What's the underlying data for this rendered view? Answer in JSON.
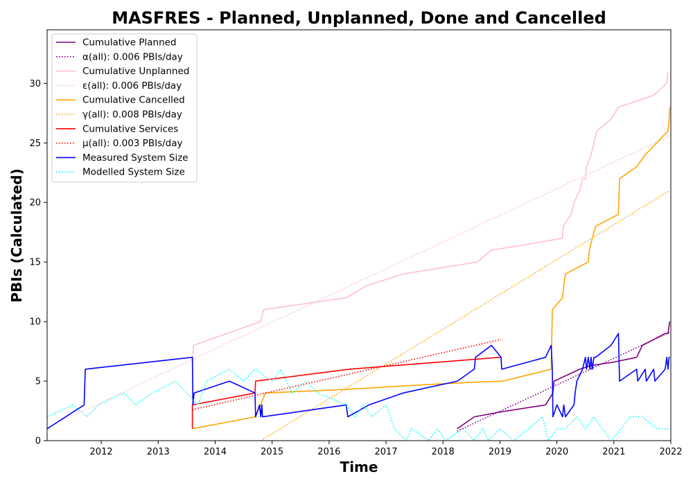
{
  "chart_data": {
    "type": "line",
    "title": "MASFRES - Planned, Unplanned, Done  and Cancelled",
    "xlabel": "Time",
    "ylabel": "PBIs (Calculated)",
    "xlim": [
      2011.05,
      2022.0
    ],
    "ylim": [
      0,
      34.5
    ],
    "x_ticks": [
      2012,
      2013,
      2014,
      2015,
      2016,
      2017,
      2018,
      2019,
      2020,
      2021,
      2022
    ],
    "x_tick_labels": [
      "2012",
      "2013",
      "2014",
      "2015",
      "2016",
      "2017",
      "2018",
      "2019",
      "2020",
      "2021",
      "2022"
    ],
    "y_ticks": [
      0,
      5,
      10,
      15,
      20,
      25,
      30
    ],
    "y_tick_labels": [
      "0",
      "5",
      "10",
      "15",
      "20",
      "25",
      "30"
    ],
    "grid": false,
    "legend_position": "top-left",
    "series": [
      {
        "name": "Cumulative Planned",
        "color": "#800080",
        "style": "solid",
        "x": [
          2018.25,
          2018.55,
          2019.0,
          2019.8,
          2019.93,
          2019.95,
          2020.4,
          2020.6,
          2021.0,
          2021.4,
          2021.5,
          2021.9,
          2021.95,
          2021.98
        ],
        "y": [
          1,
          2,
          2.4,
          3,
          4,
          5,
          6,
          6.3,
          6.6,
          7,
          8,
          9,
          9,
          10
        ]
      },
      {
        "name": "α(all): 0.006 PBIs/day",
        "color": "#800080",
        "style": "dotted",
        "x": [
          2018.25,
          2021.98
        ],
        "y": [
          0.8,
          9.1
        ]
      },
      {
        "name": "Cumulative Unplanned",
        "color": "#ffc0cb",
        "style": "solid",
        "x": [
          2013.6,
          2013.62,
          2014.8,
          2014.85,
          2016.3,
          2016.65,
          2017.3,
          2018.6,
          2018.85,
          2019.5,
          2020.1,
          2020.11,
          2020.25,
          2020.3,
          2020.4,
          2020.45,
          2020.5,
          2020.52,
          2020.6,
          2020.7,
          2020.95,
          2021.08,
          2021.7,
          2021.93,
          2021.95
        ],
        "y": [
          6.5,
          8,
          10,
          11,
          12,
          13,
          14,
          15,
          16,
          16.5,
          17,
          18,
          19,
          20,
          21,
          22,
          22,
          23,
          24,
          26,
          27,
          28,
          29,
          30,
          31
        ]
      },
      {
        "name": "ε(all): 0.006 PBIs/day",
        "color": "#ffc0cb",
        "style": "dotted",
        "x": [
          2011.5,
          2021.98
        ],
        "y": [
          2.1,
          25.6
        ]
      },
      {
        "name": "Cumulative Cancelled",
        "color": "#ffa500",
        "style": "solid",
        "x": [
          2013.6,
          2014.7,
          2014.8,
          2014.88,
          2016.3,
          2017.3,
          2018.5,
          2019.05,
          2019.9,
          2019.92,
          2020.1,
          2020.12,
          2020.15,
          2020.55,
          2020.57,
          2020.62,
          2020.68,
          2021.08,
          2021.1,
          2021.4,
          2021.55,
          2021.75,
          2021.95,
          2021.97,
          2021.98
        ],
        "y": [
          1,
          2,
          3,
          4,
          4.3,
          4.6,
          4.9,
          5,
          6,
          11,
          12,
          13,
          14,
          15,
          16,
          17,
          18,
          19,
          22,
          23,
          24,
          25,
          26,
          27,
          28
        ]
      },
      {
        "name": "γ(all): 0.008 PBIs/day",
        "color": "#ffa500",
        "style": "dotted",
        "x": [
          2014.8,
          2021.98
        ],
        "y": [
          0,
          21
        ]
      },
      {
        "name": "Cumulative Services",
        "color": "#ff0000",
        "style": "solid",
        "x": [
          2013.6,
          2013.6,
          2014.7,
          2014.71,
          2016.35,
          2019.0,
          2019.02
        ],
        "y": [
          1,
          3,
          4,
          5,
          6,
          7,
          7
        ]
      },
      {
        "name": "μ(all): 0.003 PBIs/day",
        "color": "#ff0000",
        "style": "dotted",
        "x": [
          2013.6,
          2019.02
        ],
        "y": [
          2.6,
          8.5
        ]
      },
      {
        "name": "Measured System Size",
        "color": "#0000ff",
        "style": "solid",
        "x": [
          2011.05,
          2011.7,
          2011.72,
          2013.6,
          2013.61,
          2013.63,
          2014.25,
          2014.7,
          2014.71,
          2014.78,
          2014.8,
          2014.82,
          2014.83,
          2016.3,
          2016.33,
          2016.7,
          2017.3,
          2018.25,
          2018.55,
          2018.57,
          2018.85,
          2019.02,
          2019.03,
          2019.8,
          2019.9,
          2019.92,
          2019.93,
          2020.0,
          2020.1,
          2020.12,
          2020.15,
          2020.3,
          2020.32,
          2020.35,
          2020.45,
          2020.5,
          2020.52,
          2020.55,
          2020.58,
          2020.6,
          2020.62,
          2020.65,
          2020.68,
          2020.95,
          2021.08,
          2021.1,
          2021.4,
          2021.42,
          2021.55,
          2021.57,
          2021.7,
          2021.72,
          2021.9,
          2021.93,
          2021.95,
          2021.97,
          2021.98
        ],
        "y": [
          1,
          3,
          6,
          7,
          3,
          4,
          5,
          4,
          2,
          3,
          2,
          3,
          2,
          3,
          2,
          3,
          4,
          5,
          6,
          7,
          8,
          7,
          6,
          7,
          8,
          6,
          2,
          3,
          2,
          3,
          2,
          3,
          4,
          5,
          6,
          7,
          6,
          7,
          6,
          7,
          6,
          7,
          7,
          8,
          9,
          5,
          6,
          5,
          6,
          5,
          6,
          5,
          6,
          7,
          6,
          7,
          7
        ]
      },
      {
        "name": "Modelled System Size",
        "color": "#00ffff",
        "style": "dotted",
        "x": [
          2011.05,
          2011.5,
          2011.75,
          2011.95,
          2012.4,
          2012.6,
          2012.9,
          2013.3,
          2013.5,
          2013.7,
          2013.85,
          2014.25,
          2014.5,
          2014.7,
          2015.0,
          2015.15,
          2015.35,
          2015.6,
          2015.8,
          2016.3,
          2016.45,
          2016.6,
          2016.75,
          2017.0,
          2017.15,
          2017.35,
          2017.45,
          2017.75,
          2017.9,
          2018.05,
          2018.35,
          2018.55,
          2018.7,
          2018.8,
          2019.0,
          2019.25,
          2019.5,
          2019.75,
          2019.85,
          2020.0,
          2020.15,
          2020.35,
          2020.5,
          2020.65,
          2020.8,
          2020.95,
          2021.3,
          2021.5,
          2021.75,
          2021.85,
          2021.98
        ],
        "y": [
          2,
          3,
          2,
          3,
          4,
          3,
          4,
          5,
          4,
          3,
          5,
          6,
          5,
          6,
          5,
          6,
          4,
          5,
          4,
          3,
          2,
          3,
          2,
          3,
          1,
          0,
          1,
          0,
          1,
          0,
          1,
          0,
          1,
          0,
          1,
          0,
          1,
          2,
          0,
          1,
          1,
          2,
          1,
          2,
          1,
          0,
          2,
          2,
          1,
          1,
          1
        ]
      }
    ]
  }
}
